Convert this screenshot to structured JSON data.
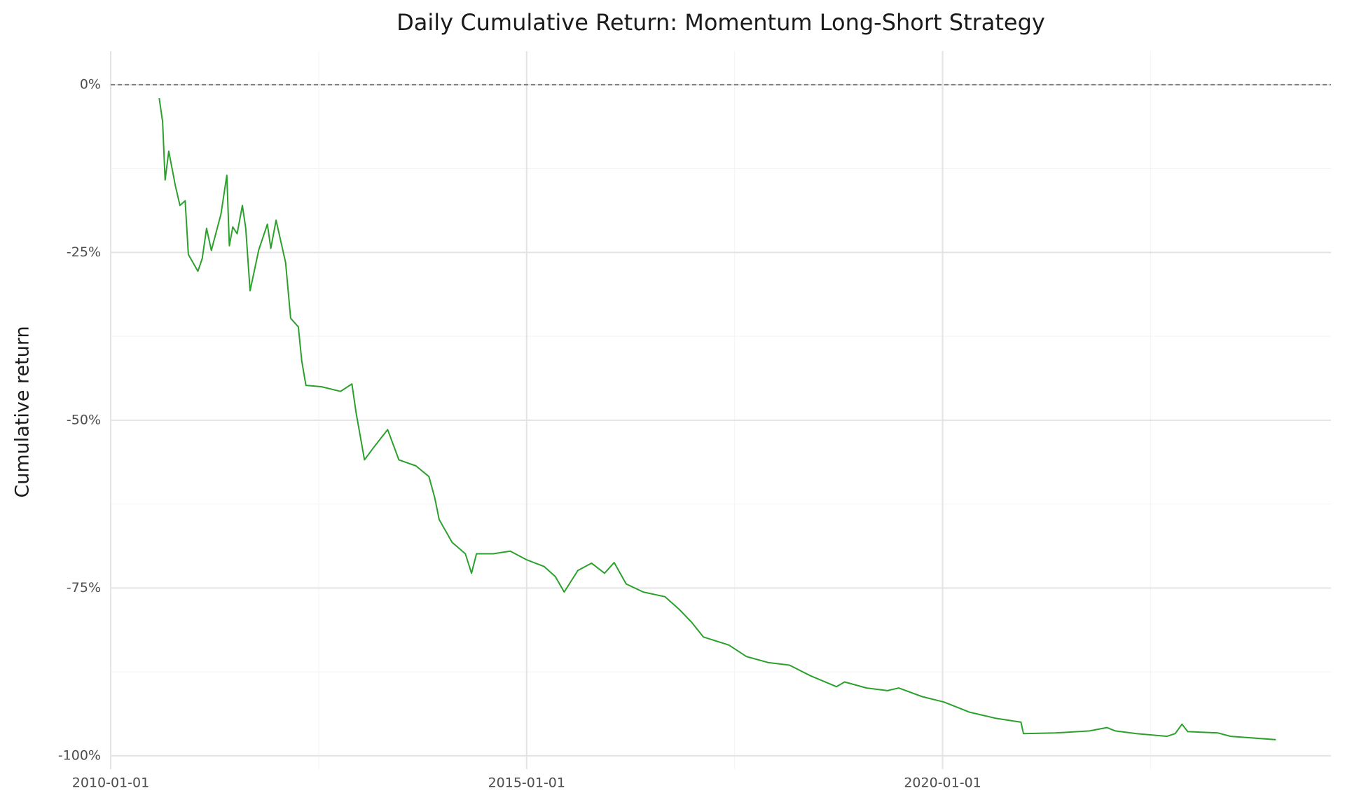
{
  "chart_data": {
    "type": "line",
    "title": "Daily Cumulative Return: Momentum Long-Short Strategy",
    "y_label": "Cumulative return",
    "color": "#2ca02c",
    "grid": true,
    "hline": 0,
    "xlim": [
      "2010-01-01",
      "2024-09-01"
    ],
    "xticks": [
      "2010-01-01",
      "2015-01-01",
      "2020-01-01"
    ],
    "ylim": [
      -102,
      5
    ],
    "yticks": [
      {
        "value": 0,
        "label": "0%"
      },
      {
        "value": -25,
        "label": "-25%"
      },
      {
        "value": -50,
        "label": "-50%"
      },
      {
        "value": -75,
        "label": "-75%"
      },
      {
        "value": -100,
        "label": "-100%"
      }
    ],
    "x": [
      "2010-08-02",
      "2010-08-17",
      "2010-08-28",
      "2010-09-13",
      "2010-10-12",
      "2010-11-01",
      "2010-11-24",
      "2010-12-08",
      "2011-01-19",
      "2011-02-07",
      "2011-02-26",
      "2011-03-19",
      "2011-04-30",
      "2011-05-26",
      "2011-06-06",
      "2011-06-21",
      "2011-07-10",
      "2011-08-02",
      "2011-08-17",
      "2011-09-05",
      "2011-10-13",
      "2011-11-20",
      "2011-12-05",
      "2011-12-28",
      "2012-02-08",
      "2012-03-01",
      "2012-04-04",
      "2012-04-19",
      "2012-05-07",
      "2012-07-13",
      "2012-10-06",
      "2012-11-25",
      "2012-12-13",
      "2013-01-19",
      "2013-03-04",
      "2013-05-01",
      "2013-06-19",
      "2013-09-02",
      "2013-10-29",
      "2013-11-24",
      "2013-12-13",
      "2014-02-08",
      "2014-04-07",
      "2014-05-04",
      "2014-05-26",
      "2014-08-07",
      "2014-10-21",
      "2015-01-01",
      "2015-03-19",
      "2015-05-07",
      "2015-06-15",
      "2015-08-14",
      "2015-10-13",
      "2015-12-09",
      "2016-01-20",
      "2016-03-13",
      "2016-05-27",
      "2016-08-30",
      "2016-11-01",
      "2016-12-25",
      "2017-02-15",
      "2017-06-07",
      "2017-08-22",
      "2017-11-25",
      "2018-02-28",
      "2018-06-01",
      "2018-09-22",
      "2018-10-28",
      "2019-02-01",
      "2019-05-04",
      "2019-06-22",
      "2019-10-04",
      "2020-01-07",
      "2020-04-28",
      "2020-08-19",
      "2020-12-10",
      "2020-12-21",
      "2021-05-10",
      "2021-10-07",
      "2021-12-22",
      "2022-01-28",
      "2022-05-01",
      "2022-09-12",
      "2022-10-18",
      "2022-11-17",
      "2022-12-12",
      "2023-04-24",
      "2023-06-18",
      "2024-01-03"
    ],
    "values": [
      -2.0,
      -5.5,
      -14.2,
      -9.9,
      -15.1,
      -18.0,
      -17.3,
      -25.3,
      -27.8,
      -25.9,
      -21.4,
      -24.7,
      -19.3,
      -13.5,
      -24.0,
      -21.2,
      -22.2,
      -18.0,
      -21.4,
      -30.7,
      -24.6,
      -20.8,
      -24.4,
      -20.2,
      -26.5,
      -34.8,
      -36.1,
      -41.2,
      -44.8,
      -45.0,
      -45.7,
      -44.6,
      -48.8,
      -55.9,
      -53.9,
      -51.4,
      -55.9,
      -56.8,
      -58.4,
      -61.6,
      -64.8,
      -68.2,
      -69.9,
      -72.8,
      -69.9,
      -69.9,
      -69.5,
      -70.8,
      -71.8,
      -73.3,
      -75.6,
      -72.4,
      -71.3,
      -72.8,
      -71.2,
      -74.4,
      -75.6,
      -76.3,
      -78.2,
      -80.1,
      -82.3,
      -83.5,
      -85.2,
      -86.1,
      -86.5,
      -88.1,
      -89.7,
      -89.0,
      -89.9,
      -90.3,
      -89.9,
      -91.2,
      -92.0,
      -93.5,
      -94.4,
      -95.0,
      -96.7,
      -96.6,
      -96.3,
      -95.8,
      -96.3,
      -96.7,
      -97.1,
      -96.7,
      -95.3,
      -96.4,
      -96.6,
      -97.1,
      -97.6
    ]
  }
}
